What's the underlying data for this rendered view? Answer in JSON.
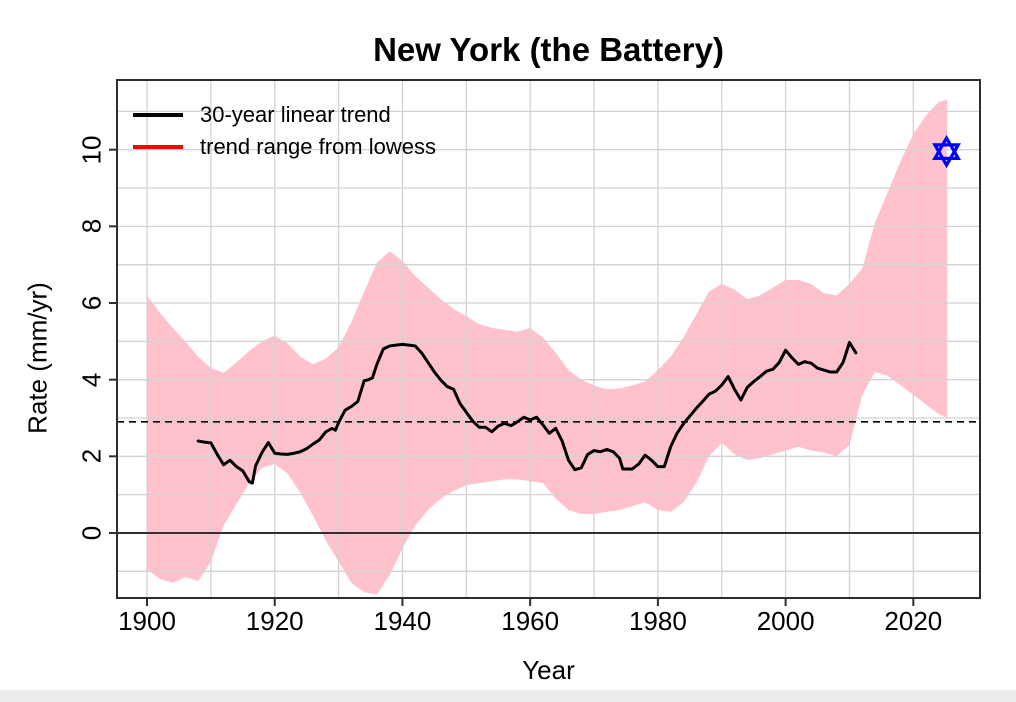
{
  "title": "New York (the Battery)",
  "axes": {
    "x_title": "Year",
    "y_title": "Rate (mm/yr)"
  },
  "legend": {
    "items": [
      {
        "label": "30-year linear trend",
        "color": "#000000"
      },
      {
        "label": "trend range from lowess",
        "color": "#ff0000"
      }
    ]
  },
  "colors": {
    "band": "#ffc2cd",
    "trend_line": "#000000",
    "marker": "#0000ff",
    "grid": "#d2d2d2",
    "axis": "#2e2e2e",
    "zero_line": "#303030",
    "dashed_line": "#000000"
  },
  "chart_data": {
    "type": "line",
    "title": "New York (the Battery)",
    "xlabel": "Year",
    "ylabel": "Rate (mm/yr)",
    "xlim": [
      1895.3,
      2030.44
    ],
    "ylim": [
      -1.696,
      11.818
    ],
    "grid": true,
    "legend_position": "top-left",
    "x_tick_labels": [
      1900,
      1920,
      1940,
      1960,
      1980,
      2000,
      2020
    ],
    "y_tick_labels": [
      0,
      2,
      4,
      6,
      8,
      10
    ],
    "x_gridlines": [
      1900,
      1910,
      1920,
      1930,
      1940,
      1950,
      1960,
      1970,
      1980,
      1990,
      2000,
      2010,
      2020
    ],
    "y_gridlines": [
      -1,
      0,
      1,
      2,
      3,
      4,
      5,
      6,
      7,
      8,
      9,
      10,
      11
    ],
    "reference_lines": [
      {
        "y": 0,
        "style": "solid"
      },
      {
        "y": 2.9,
        "style": "dashed"
      }
    ],
    "series": [
      {
        "name": "trend range from lowess",
        "type": "band",
        "color": "#ffc2cd",
        "x": [
          1900,
          1902,
          1904,
          1906,
          1908,
          1910,
          1912,
          1914,
          1916,
          1918,
          1920,
          1922,
          1924,
          1926,
          1928,
          1930,
          1932,
          1934,
          1936,
          1938,
          1940,
          1942,
          1944,
          1946,
          1948,
          1950,
          1952,
          1954,
          1956,
          1958,
          1960,
          1962,
          1964,
          1966,
          1968,
          1970,
          1972,
          1974,
          1976,
          1978,
          1980,
          1982,
          1984,
          1986,
          1988,
          1990,
          1992,
          1994,
          1996,
          1998,
          2000,
          2002,
          2004,
          2006,
          2008,
          2010,
          2012,
          2014,
          2016,
          2018,
          2020,
          2022,
          2024,
          2025.3
        ],
        "upper": [
          6.2,
          5.75,
          5.35,
          5.0,
          4.6,
          4.3,
          4.18,
          4.45,
          4.75,
          5.0,
          5.15,
          4.95,
          4.6,
          4.4,
          4.55,
          4.85,
          5.5,
          6.3,
          7.05,
          7.35,
          7.1,
          6.7,
          6.4,
          6.1,
          5.85,
          5.65,
          5.45,
          5.35,
          5.3,
          5.25,
          5.35,
          5.1,
          4.7,
          4.25,
          4.0,
          3.85,
          3.75,
          3.77,
          3.85,
          3.95,
          4.25,
          4.6,
          5.1,
          5.7,
          6.3,
          6.5,
          6.35,
          6.1,
          6.2,
          6.4,
          6.6,
          6.6,
          6.5,
          6.25,
          6.2,
          6.5,
          6.9,
          8.1,
          8.9,
          9.7,
          10.4,
          10.9,
          11.25,
          11.3
        ],
        "lower": [
          -0.95,
          -1.2,
          -1.3,
          -1.15,
          -1.25,
          -0.75,
          0.2,
          0.75,
          1.3,
          1.7,
          1.8,
          1.55,
          1.05,
          0.45,
          -0.2,
          -0.75,
          -1.3,
          -1.55,
          -1.6,
          -1.1,
          -0.4,
          0.2,
          0.6,
          0.9,
          1.1,
          1.25,
          1.3,
          1.35,
          1.4,
          1.4,
          1.35,
          1.3,
          0.9,
          0.6,
          0.5,
          0.5,
          0.55,
          0.6,
          0.7,
          0.8,
          0.6,
          0.55,
          0.8,
          1.3,
          2.0,
          2.35,
          2.05,
          1.9,
          1.95,
          2.05,
          2.15,
          2.25,
          2.15,
          2.1,
          2.0,
          2.3,
          3.6,
          4.2,
          4.1,
          3.85,
          3.6,
          3.35,
          3.1,
          3.0
        ]
      },
      {
        "name": "30-year linear trend",
        "type": "line",
        "color": "#000000",
        "x": [
          1908,
          1909,
          1910,
          1911,
          1912,
          1913,
          1914,
          1915,
          1916,
          1916.5,
          1917,
          1918,
          1919,
          1920,
          1921,
          1922,
          1923,
          1924,
          1925,
          1926,
          1927,
          1928,
          1929,
          1929.5,
          1930,
          1931,
          1932,
          1933,
          1934,
          1934.7,
          1935.3,
          1936,
          1937,
          1938,
          1939,
          1940,
          1941,
          1942,
          1943,
          1944,
          1945,
          1946,
          1947,
          1948,
          1949,
          1950,
          1951,
          1952,
          1953,
          1954,
          1955,
          1956,
          1957,
          1958,
          1959,
          1960,
          1961,
          1962,
          1963,
          1964,
          1965,
          1966,
          1967,
          1968,
          1969,
          1970,
          1971,
          1972,
          1973,
          1974,
          1974.5,
          1975,
          1976,
          1977,
          1978,
          1979,
          1980,
          1981,
          1982,
          1983,
          1984,
          1985,
          1986,
          1987,
          1988,
          1989,
          1990,
          1991,
          1992,
          1993,
          1994,
          1995,
          1996,
          1997,
          1998,
          1999,
          2000,
          2001,
          2002,
          2003,
          2004,
          2005,
          2006,
          2007,
          2008,
          2009,
          2010,
          2011
        ],
        "y": [
          2.4,
          2.37,
          2.35,
          2.05,
          1.78,
          1.9,
          1.73,
          1.62,
          1.34,
          1.3,
          1.75,
          2.1,
          2.36,
          2.08,
          2.06,
          2.05,
          2.08,
          2.12,
          2.2,
          2.32,
          2.43,
          2.64,
          2.73,
          2.68,
          2.88,
          3.2,
          3.3,
          3.43,
          3.97,
          4.0,
          4.05,
          4.4,
          4.8,
          4.88,
          4.9,
          4.92,
          4.9,
          4.88,
          4.7,
          4.45,
          4.2,
          3.99,
          3.82,
          3.75,
          3.38,
          3.15,
          2.92,
          2.76,
          2.76,
          2.64,
          2.79,
          2.86,
          2.8,
          2.9,
          3.02,
          2.95,
          3.02,
          2.82,
          2.6,
          2.73,
          2.4,
          1.9,
          1.65,
          1.7,
          2.05,
          2.15,
          2.12,
          2.18,
          2.12,
          1.95,
          1.67,
          1.67,
          1.67,
          1.8,
          2.03,
          1.9,
          1.73,
          1.73,
          2.25,
          2.6,
          2.85,
          3.05,
          3.25,
          3.43,
          3.62,
          3.7,
          3.86,
          4.08,
          3.75,
          3.47,
          3.8,
          3.95,
          4.08,
          4.22,
          4.27,
          4.45,
          4.77,
          4.57,
          4.4,
          4.47,
          4.43,
          4.3,
          4.25,
          4.2,
          4.2,
          4.45,
          4.97,
          4.7
        ]
      },
      {
        "name": "projection marker",
        "type": "point",
        "symbol": "star-of-david",
        "color": "#0000ff",
        "x": [
          2025.2
        ],
        "y": [
          9.95
        ]
      }
    ]
  }
}
